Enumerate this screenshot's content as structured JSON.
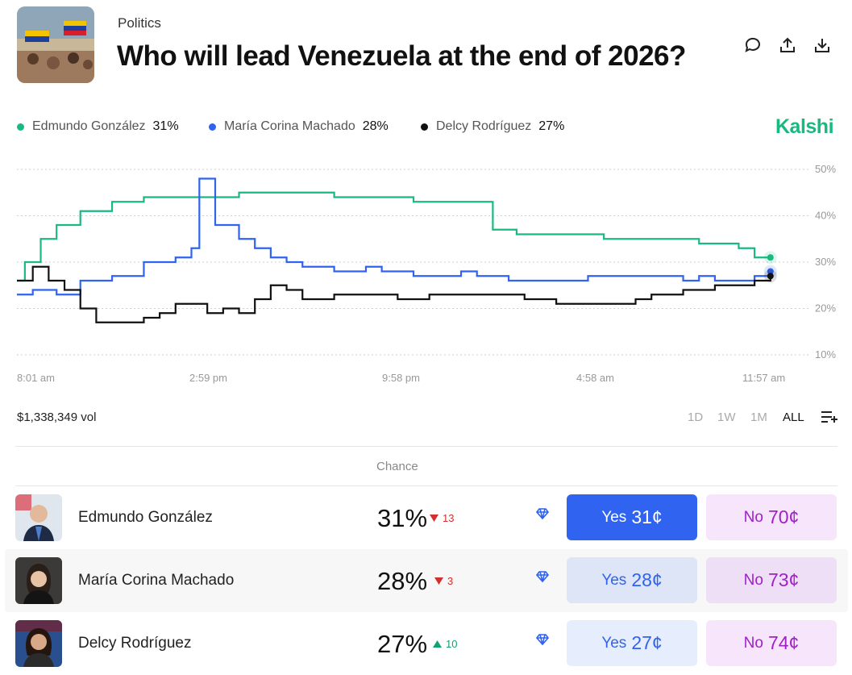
{
  "header": {
    "category": "Politics",
    "title": "Who will lead Venezuela at the end of 2026?",
    "icons": [
      "comment-icon",
      "share-icon",
      "download-icon"
    ]
  },
  "brand": {
    "name": "Kalshi",
    "color": "#19b980"
  },
  "legend": [
    {
      "name": "Edmundo González",
      "value": "31%",
      "color": "#19b980"
    },
    {
      "name": "María Corina Machado",
      "value": "28%",
      "color": "#2f63f0"
    },
    {
      "name": "Delcy Rodríguez",
      "value": "27%",
      "color": "#111111"
    }
  ],
  "chart_data": {
    "type": "line",
    "x_ticks": [
      "8:01 am",
      "2:59 pm",
      "9:58 pm",
      "4:58 am",
      "11:57 am"
    ],
    "y_ticks": [
      "50%",
      "40%",
      "30%",
      "20%",
      "10%"
    ],
    "ylim": [
      10,
      50
    ],
    "grid": true,
    "legend_position": "top-left",
    "series": [
      {
        "name": "Edmundo González",
        "color": "#19b980",
        "points": [
          [
            0,
            26
          ],
          [
            1,
            30
          ],
          [
            3,
            35
          ],
          [
            5,
            38
          ],
          [
            8,
            41
          ],
          [
            12,
            43
          ],
          [
            16,
            44
          ],
          [
            20,
            44
          ],
          [
            25,
            44
          ],
          [
            28,
            45
          ],
          [
            32,
            45
          ],
          [
            36,
            45
          ],
          [
            40,
            44
          ],
          [
            44,
            44
          ],
          [
            46,
            44
          ],
          [
            50,
            43
          ],
          [
            54,
            43
          ],
          [
            55,
            43
          ],
          [
            58,
            43
          ],
          [
            59,
            43
          ],
          [
            60,
            37
          ],
          [
            63,
            36
          ],
          [
            66,
            36
          ],
          [
            70,
            36
          ],
          [
            74,
            35
          ],
          [
            78,
            35
          ],
          [
            82,
            35
          ],
          [
            86,
            34
          ],
          [
            89,
            34
          ],
          [
            91,
            33
          ],
          [
            93,
            31
          ],
          [
            95,
            31
          ]
        ]
      },
      {
        "name": "María Corina Machado",
        "color": "#2f63f0",
        "points": [
          [
            0,
            23
          ],
          [
            2,
            24
          ],
          [
            5,
            23
          ],
          [
            8,
            26
          ],
          [
            12,
            27
          ],
          [
            16,
            30
          ],
          [
            20,
            31
          ],
          [
            22,
            33
          ],
          [
            23,
            48
          ],
          [
            25,
            38
          ],
          [
            28,
            35
          ],
          [
            30,
            33
          ],
          [
            32,
            31
          ],
          [
            34,
            30
          ],
          [
            36,
            29
          ],
          [
            38,
            29
          ],
          [
            40,
            28
          ],
          [
            44,
            29
          ],
          [
            46,
            28
          ],
          [
            50,
            27
          ],
          [
            54,
            27
          ],
          [
            56,
            28
          ],
          [
            58,
            27
          ],
          [
            62,
            26
          ],
          [
            66,
            26
          ],
          [
            70,
            26
          ],
          [
            72,
            27
          ],
          [
            76,
            27
          ],
          [
            80,
            27
          ],
          [
            84,
            26
          ],
          [
            86,
            27
          ],
          [
            88,
            26
          ],
          [
            90,
            26
          ],
          [
            93,
            27
          ],
          [
            95,
            28
          ]
        ]
      },
      {
        "name": "Delcy Rodríguez",
        "color": "#111111",
        "points": [
          [
            0,
            26
          ],
          [
            2,
            29
          ],
          [
            4,
            26
          ],
          [
            6,
            24
          ],
          [
            8,
            20
          ],
          [
            10,
            17
          ],
          [
            12,
            17
          ],
          [
            16,
            18
          ],
          [
            18,
            19
          ],
          [
            20,
            21
          ],
          [
            22,
            21
          ],
          [
            24,
            19
          ],
          [
            26,
            20
          ],
          [
            28,
            19
          ],
          [
            30,
            22
          ],
          [
            32,
            25
          ],
          [
            34,
            24
          ],
          [
            36,
            22
          ],
          [
            38,
            22
          ],
          [
            40,
            23
          ],
          [
            44,
            23
          ],
          [
            48,
            22
          ],
          [
            52,
            23
          ],
          [
            56,
            23
          ],
          [
            60,
            23
          ],
          [
            64,
            22
          ],
          [
            68,
            21
          ],
          [
            72,
            21
          ],
          [
            76,
            21
          ],
          [
            78,
            22
          ],
          [
            80,
            23
          ],
          [
            84,
            24
          ],
          [
            88,
            25
          ],
          [
            91,
            25
          ],
          [
            93,
            26
          ],
          [
            95,
            27
          ]
        ]
      }
    ]
  },
  "volume": "$1,338,349 vol",
  "ranges": [
    "1D",
    "1W",
    "1M",
    "ALL"
  ],
  "active_range": "ALL",
  "table": {
    "header": "Chance",
    "rows": [
      {
        "name": "Edmundo González",
        "chance": "31%",
        "delta": "13",
        "direction": "down",
        "yes_label": "Yes",
        "yes_price": "31¢",
        "no_label": "No",
        "no_price": "70¢"
      },
      {
        "name": "María Corina Machado",
        "chance": "28%",
        "delta": "3",
        "direction": "down",
        "yes_label": "Yes",
        "yes_price": "28¢",
        "no_label": "No",
        "no_price": "73¢"
      },
      {
        "name": "Delcy Rodríguez",
        "chance": "27%",
        "delta": "10",
        "direction": "up",
        "yes_label": "Yes",
        "yes_price": "27¢",
        "no_label": "No",
        "no_price": "74¢"
      }
    ]
  }
}
